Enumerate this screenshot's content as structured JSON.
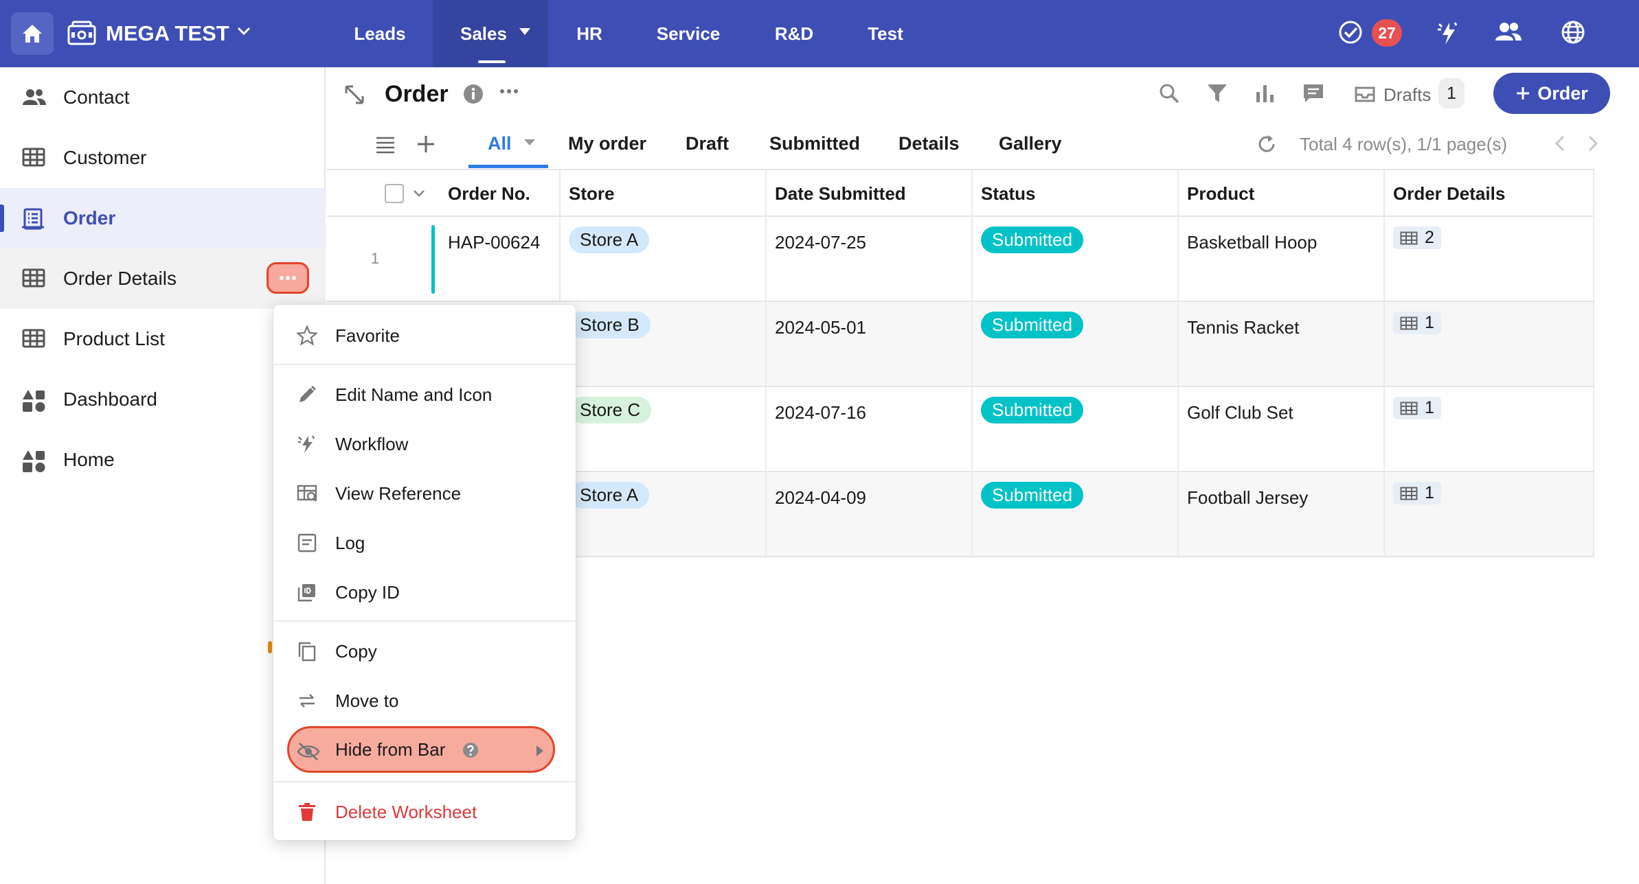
{
  "app": {
    "name": "MEGA TEST",
    "nav": [
      {
        "label": "Leads"
      },
      {
        "label": "Sales"
      },
      {
        "label": "HR"
      },
      {
        "label": "Service"
      },
      {
        "label": "R&D"
      },
      {
        "label": "Test"
      }
    ],
    "active_nav": "Sales",
    "notification_count": "27",
    "accent_color": "#3d4fb5"
  },
  "sidebar": {
    "items": [
      {
        "label": "Contact",
        "icon": "contacts-icon"
      },
      {
        "label": "Customer",
        "icon": "table-icon"
      },
      {
        "label": "Order",
        "icon": "order-form-icon"
      },
      {
        "label": "Order Details",
        "icon": "table-icon"
      },
      {
        "label": "Product List",
        "icon": "table-icon"
      },
      {
        "label": "Dashboard",
        "icon": "dashboard-icon"
      },
      {
        "label": "Home",
        "icon": "dashboard-icon"
      }
    ],
    "active_item": "Order"
  },
  "header": {
    "title": "Order",
    "drafts_label": "Drafts",
    "drafts_count": "1",
    "add_button_label": "Order"
  },
  "views": {
    "tabs": [
      {
        "label": "All"
      },
      {
        "label": "My order"
      },
      {
        "label": "Draft"
      },
      {
        "label": "Submitted"
      },
      {
        "label": "Details"
      },
      {
        "label": "Gallery"
      }
    ],
    "active_tab": "All",
    "total_text": "Total 4 row(s), 1/1 page(s)"
  },
  "table": {
    "columns": [
      "Order No.",
      "Store",
      "Date Submitted",
      "Status",
      "Product",
      "Order Details"
    ],
    "rows": [
      {
        "num": "1",
        "order_no": "HAP-00624",
        "store": "Store A",
        "store_color": "#d3e8fa",
        "date": "2024-07-25",
        "status": "Submitted",
        "product": "Basketball Hoop",
        "details": "2"
      },
      {
        "num": "",
        "order_no": "",
        "store": "Store B",
        "store_color": "#d3e8fa",
        "date": "2024-05-01",
        "status": "Submitted",
        "product": "Tennis Racket",
        "details": "1"
      },
      {
        "num": "",
        "order_no": "",
        "store": "Store C",
        "store_color": "#d6f2dc",
        "date": "2024-07-16",
        "status": "Submitted",
        "product": "Golf Club Set",
        "details": "1"
      },
      {
        "num": "",
        "order_no": "",
        "store": "Store A",
        "store_color": "#d3e8fa",
        "date": "2024-04-09",
        "status": "Submitted",
        "product": "Football Jersey",
        "details": "1"
      }
    ],
    "status_color": "#00c2c7"
  },
  "context_menu": {
    "items": [
      {
        "label": "Favorite",
        "icon": "star-icon"
      },
      {
        "label": "Edit Name and Icon",
        "icon": "pencil-icon"
      },
      {
        "label": "Workflow",
        "icon": "workflow-icon"
      },
      {
        "label": "View Reference",
        "icon": "view-reference-icon"
      },
      {
        "label": "Log",
        "icon": "log-icon"
      },
      {
        "label": "Copy ID",
        "icon": "copy-id-icon"
      },
      {
        "label": "Copy",
        "icon": "copy-icon"
      },
      {
        "label": "Move to",
        "icon": "move-icon"
      },
      {
        "label": "Hide from Bar",
        "icon": "eye-off-icon"
      },
      {
        "label": "Delete Worksheet",
        "icon": "trash-icon"
      }
    ],
    "highlighted_item": "Hide from Bar",
    "danger_color": "#e03a3a"
  }
}
